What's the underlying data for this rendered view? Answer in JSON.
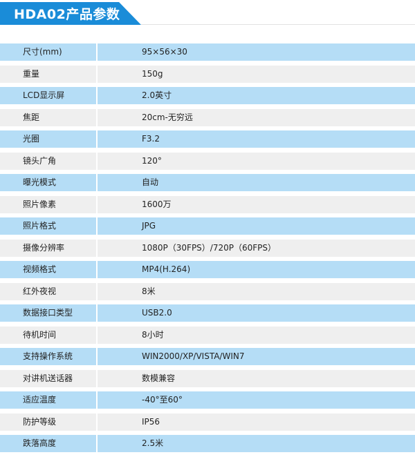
{
  "header": {
    "title": "HDA02产品参数"
  },
  "colors": {
    "banner": "#1a8cd8",
    "row_blue": "#b5ddf6",
    "row_grey": "#efefef"
  },
  "specs": [
    {
      "label": "尺寸(mm)",
      "value": "95×56×30"
    },
    {
      "label": "重量",
      "value": "150g"
    },
    {
      "label": "LCD显示屏",
      "value": "2.0英寸"
    },
    {
      "label": "焦距",
      "value": "20cm-无穷远"
    },
    {
      "label": "光圈",
      "value": "F3.2"
    },
    {
      "label": "镜头广角",
      "value": "120°"
    },
    {
      "label": "曝光模式",
      "value": "自动"
    },
    {
      "label": "照片像素",
      "value": "1600万"
    },
    {
      "label": "照片格式",
      "value": "JPG"
    },
    {
      "label": "摄像分辨率",
      "value": "1080P（30FPS）/720P（60FPS）"
    },
    {
      "label": "视频格式",
      "value": "MP4(H.264)"
    },
    {
      "label": "红外夜视",
      "value": "8米"
    },
    {
      "label": "数据接口类型",
      "value": "USB2.0"
    },
    {
      "label": "待机时间",
      "value": "8小时"
    },
    {
      "label": "支持操作系统",
      "value": "WIN2000/XP/VISTA/WIN7"
    },
    {
      "label": "对讲机送话器",
      "value": "数模兼容"
    },
    {
      "label": "适应温度",
      "value": "-40°至60°"
    },
    {
      "label": "防护等级",
      "value": "IP56"
    },
    {
      "label": "跌落高度",
      "value": "2.5米"
    }
  ]
}
